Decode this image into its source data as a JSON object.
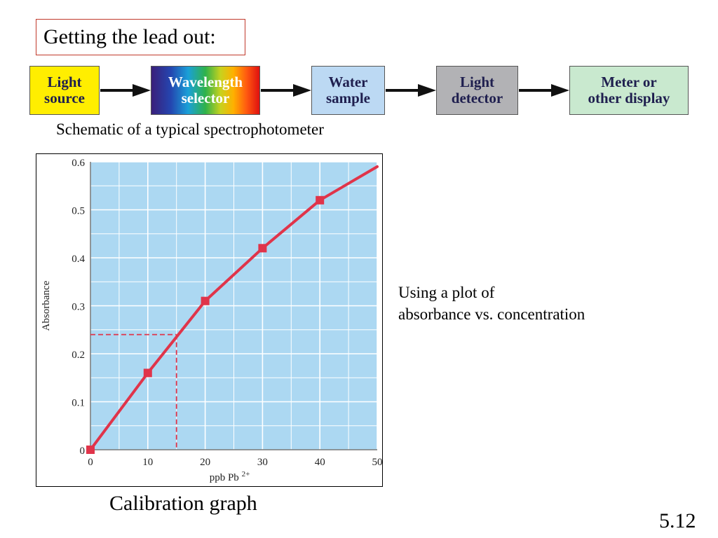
{
  "slide": {
    "title": "Getting the lead out:",
    "schematic_caption": "Schematic of a typical spectrophotometer",
    "note_line1": "Using a plot of",
    "note_line2": "absorbance vs. concentration",
    "graph_caption": "Calibration graph",
    "slide_number": "5.12"
  },
  "schematic": {
    "boxes": [
      {
        "line1": "Light",
        "line2": "source"
      },
      {
        "line1": "Wavelength",
        "line2": "selector"
      },
      {
        "line1": "Water",
        "line2": "sample"
      },
      {
        "line1": "Light",
        "line2": "detector"
      },
      {
        "line1": "Meter or",
        "line2": "other display"
      }
    ]
  },
  "chart_data": {
    "type": "line",
    "title": "",
    "xlabel": "ppb Pb",
    "xlabel_sup": "2+",
    "ylabel": "Absorbance",
    "xlim": [
      0,
      50
    ],
    "ylim": [
      0,
      0.6
    ],
    "x_ticks": [
      0,
      10,
      20,
      30,
      40,
      50
    ],
    "y_ticks": [
      0,
      0.1,
      0.2,
      0.3,
      0.4,
      0.5,
      0.6
    ],
    "y_tick_labels": [
      "0",
      "0.1",
      "0.2",
      "0.3",
      "0.4",
      "0.5",
      "0.6"
    ],
    "grid": true,
    "points": {
      "x": [
        0,
        10,
        20,
        30,
        40
      ],
      "y": [
        0,
        0.16,
        0.31,
        0.42,
        0.52
      ]
    },
    "curve": {
      "x": [
        0,
        10,
        20,
        30,
        40,
        45,
        50
      ],
      "y": [
        0,
        0.16,
        0.31,
        0.42,
        0.52,
        0.555,
        0.59
      ]
    },
    "reading": {
      "x": 15,
      "y": 0.24
    },
    "colors": {
      "plot_bg": "#acd8f2",
      "curve": "#e0344a",
      "grid": "#ffffff"
    }
  }
}
